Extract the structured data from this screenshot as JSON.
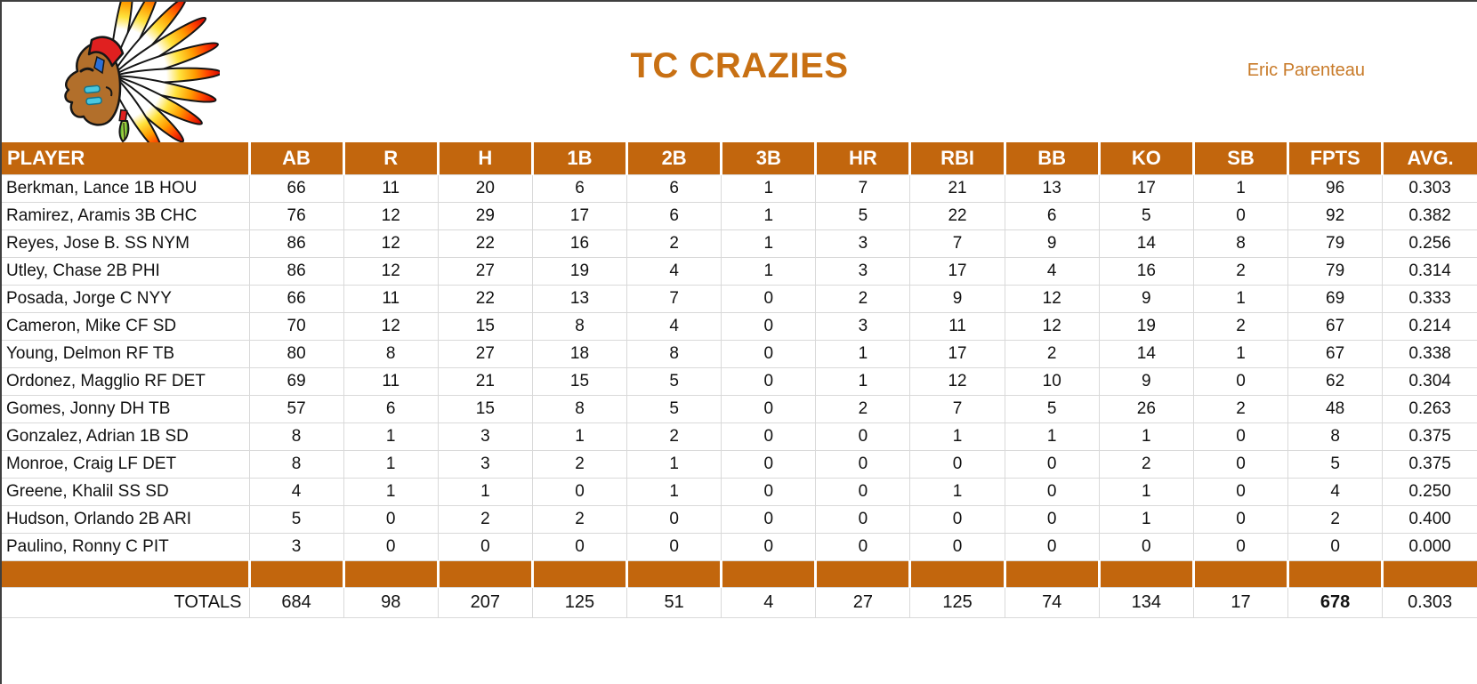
{
  "header": {
    "title": "TC CRAZIES",
    "owner": "Eric Parenteau",
    "logo_icon": "indian-chief-head-logo"
  },
  "colors": {
    "accent_orange": "#c2660d",
    "title_orange": "#c87013",
    "gridline_gray": "#d9d9d9"
  },
  "table": {
    "columns": [
      "PLAYER",
      "AB",
      "R",
      "H",
      "1B",
      "2B",
      "3B",
      "HR",
      "RBI",
      "BB",
      "KO",
      "SB",
      "FPTS",
      "AVG."
    ],
    "rows": [
      {
        "player": "Berkman, Lance 1B HOU",
        "stats": [
          "66",
          "11",
          "20",
          "6",
          "6",
          "1",
          "7",
          "21",
          "13",
          "17",
          "1",
          "96",
          "0.303"
        ]
      },
      {
        "player": "Ramirez, Aramis 3B CHC",
        "stats": [
          "76",
          "12",
          "29",
          "17",
          "6",
          "1",
          "5",
          "22",
          "6",
          "5",
          "0",
          "92",
          "0.382"
        ]
      },
      {
        "player": "Reyes, Jose B. SS NYM",
        "stats": [
          "86",
          "12",
          "22",
          "16",
          "2",
          "1",
          "3",
          "7",
          "9",
          "14",
          "8",
          "79",
          "0.256"
        ]
      },
      {
        "player": "Utley, Chase 2B PHI",
        "stats": [
          "86",
          "12",
          "27",
          "19",
          "4",
          "1",
          "3",
          "17",
          "4",
          "16",
          "2",
          "79",
          "0.314"
        ]
      },
      {
        "player": "Posada, Jorge C NYY",
        "stats": [
          "66",
          "11",
          "22",
          "13",
          "7",
          "0",
          "2",
          "9",
          "12",
          "9",
          "1",
          "69",
          "0.333"
        ]
      },
      {
        "player": "Cameron, Mike CF SD",
        "stats": [
          "70",
          "12",
          "15",
          "8",
          "4",
          "0",
          "3",
          "11",
          "12",
          "19",
          "2",
          "67",
          "0.214"
        ]
      },
      {
        "player": "Young, Delmon RF TB",
        "stats": [
          "80",
          "8",
          "27",
          "18",
          "8",
          "0",
          "1",
          "17",
          "2",
          "14",
          "1",
          "67",
          "0.338"
        ]
      },
      {
        "player": "Ordonez, Magglio RF DET",
        "stats": [
          "69",
          "11",
          "21",
          "15",
          "5",
          "0",
          "1",
          "12",
          "10",
          "9",
          "0",
          "62",
          "0.304"
        ]
      },
      {
        "player": "Gomes, Jonny DH TB",
        "stats": [
          "57",
          "6",
          "15",
          "8",
          "5",
          "0",
          "2",
          "7",
          "5",
          "26",
          "2",
          "48",
          "0.263"
        ]
      },
      {
        "player": "Gonzalez, Adrian 1B SD",
        "stats": [
          "8",
          "1",
          "3",
          "1",
          "2",
          "0",
          "0",
          "1",
          "1",
          "1",
          "0",
          "8",
          "0.375"
        ]
      },
      {
        "player": "Monroe, Craig LF DET",
        "stats": [
          "8",
          "1",
          "3",
          "2",
          "1",
          "0",
          "0",
          "0",
          "0",
          "2",
          "0",
          "5",
          "0.375"
        ]
      },
      {
        "player": "Greene, Khalil SS SD",
        "stats": [
          "4",
          "1",
          "1",
          "0",
          "1",
          "0",
          "0",
          "1",
          "0",
          "1",
          "0",
          "4",
          "0.250"
        ]
      },
      {
        "player": "Hudson, Orlando 2B ARI",
        "stats": [
          "5",
          "0",
          "2",
          "2",
          "0",
          "0",
          "0",
          "0",
          "0",
          "1",
          "0",
          "2",
          "0.400"
        ]
      },
      {
        "player": "Paulino, Ronny C PIT",
        "stats": [
          "3",
          "0",
          "0",
          "0",
          "0",
          "0",
          "0",
          "0",
          "0",
          "0",
          "0",
          "0",
          "0.000"
        ]
      }
    ],
    "totals": {
      "label": "TOTALS",
      "stats": [
        "684",
        "98",
        "207",
        "125",
        "51",
        "4",
        "27",
        "125",
        "74",
        "134",
        "17",
        "678",
        "0.303"
      ]
    }
  }
}
